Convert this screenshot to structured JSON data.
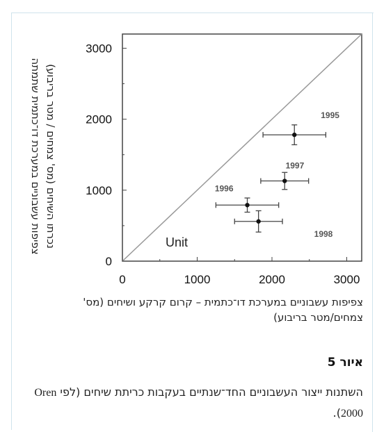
{
  "chart_data": {
    "type": "scatter",
    "xlabel": "צפיפות עשבוניים במערכת דו־כתמית – קרום קרקע ושיחים (מס' צמחים/מטר בריבוע)",
    "ylabel_line1": "צפיפות עשבוניים במערכת דו־כתמית שתמתה",
    "ylabel_line2": "נכרתו השיחים (מס' צמחים / מטר בריבוע)",
    "xlim": [
      0,
      3200
    ],
    "ylim": [
      0,
      3200
    ],
    "xticks": [
      0,
      1000,
      2000,
      3000
    ],
    "yticks": [
      0,
      1000,
      2000,
      3000
    ],
    "xtick_labels": [
      "0",
      "1000",
      "2000",
      "3000"
    ],
    "ytick_labels": [
      "0",
      "1000",
      "2000",
      "3000"
    ],
    "reference_line_label": "Unit",
    "points": [
      {
        "label": "1995",
        "x": 2300,
        "y": 1780,
        "xerr": 420,
        "yerr": 140
      },
      {
        "label": "1997",
        "x": 2170,
        "y": 1130,
        "xerr": 320,
        "yerr": 120
      },
      {
        "label": "1996",
        "x": 1670,
        "y": 790,
        "xerr": 420,
        "yerr": 100
      },
      {
        "label": "1998",
        "x": 1820,
        "y": 560,
        "xerr": 320,
        "yerr": 150
      }
    ],
    "grid": false
  },
  "figure": {
    "title": "איור 5",
    "caption_part1": "השתנות ייצור העשבוניים החד־שנתיים בעקבות כריתת שיחים (לפי",
    "caption_citation": "Oren 2000",
    "caption_part2": ")."
  }
}
